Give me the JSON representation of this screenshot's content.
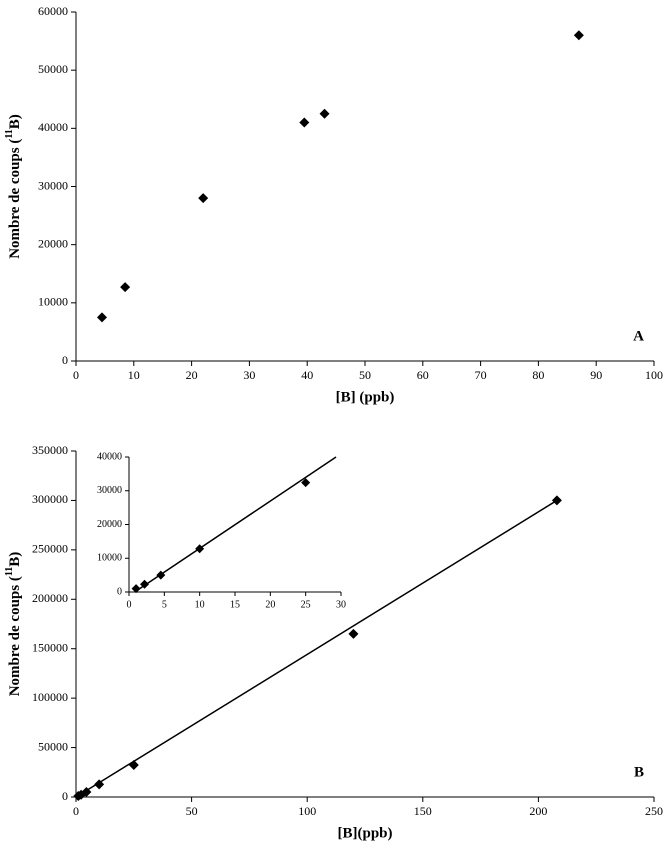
{
  "chart_data": [
    {
      "type": "scatter",
      "xlabel": "[B] (ppb)",
      "ylabel": {
        "prefix": "Nombre de coups (",
        "superscript": "11",
        "suffix": "B)"
      },
      "annotation": "A",
      "x": [
        4.5,
        8.5,
        22,
        39.5,
        43,
        87
      ],
      "values": [
        7500,
        12700,
        28000,
        41000,
        42500,
        56000
      ],
      "color": "#000000",
      "xlim": [
        0,
        100
      ],
      "xticks": [
        0,
        10,
        20,
        30,
        40,
        50,
        60,
        70,
        80,
        90,
        100
      ],
      "ylim": [
        0,
        60000
      ],
      "yticks": [
        0,
        10000,
        20000,
        30000,
        40000,
        50000,
        60000
      ],
      "grid": false
    },
    {
      "type": "scatter",
      "xlabel": "[B](ppb)",
      "ylabel": {
        "prefix": "Nombre de coups (",
        "superscript": "11",
        "suffix": "B)"
      },
      "annotation": "B",
      "x": [
        1,
        2.2,
        4.5,
        10,
        25,
        120,
        208
      ],
      "values": [
        1000,
        2300,
        5000,
        12800,
        32400,
        165000,
        300000
      ],
      "color": "#000000",
      "fit_line": {
        "x": [
          0,
          208
        ],
        "y": [
          0,
          300000
        ]
      },
      "xlim": [
        0,
        250
      ],
      "xticks": [
        0,
        50,
        100,
        150,
        200,
        250
      ],
      "ylim": [
        0,
        350000
      ],
      "yticks": [
        0,
        50000,
        100000,
        150000,
        200000,
        250000,
        300000,
        350000
      ],
      "grid": false
    },
    {
      "type": "scatter",
      "x": [
        1,
        2.2,
        4.5,
        10,
        25
      ],
      "values": [
        1000,
        2300,
        5000,
        12800,
        32400
      ],
      "color": "#000000",
      "fit_line": {
        "x": [
          0.8,
          29.3
        ],
        "y": [
          0,
          40000
        ]
      },
      "xlim": [
        0,
        30
      ],
      "xticks": [
        0,
        5,
        10,
        15,
        20,
        25,
        30
      ],
      "ylim": [
        0,
        40000
      ],
      "yticks": [
        0,
        10000,
        20000,
        30000,
        40000
      ],
      "grid": false
    }
  ]
}
